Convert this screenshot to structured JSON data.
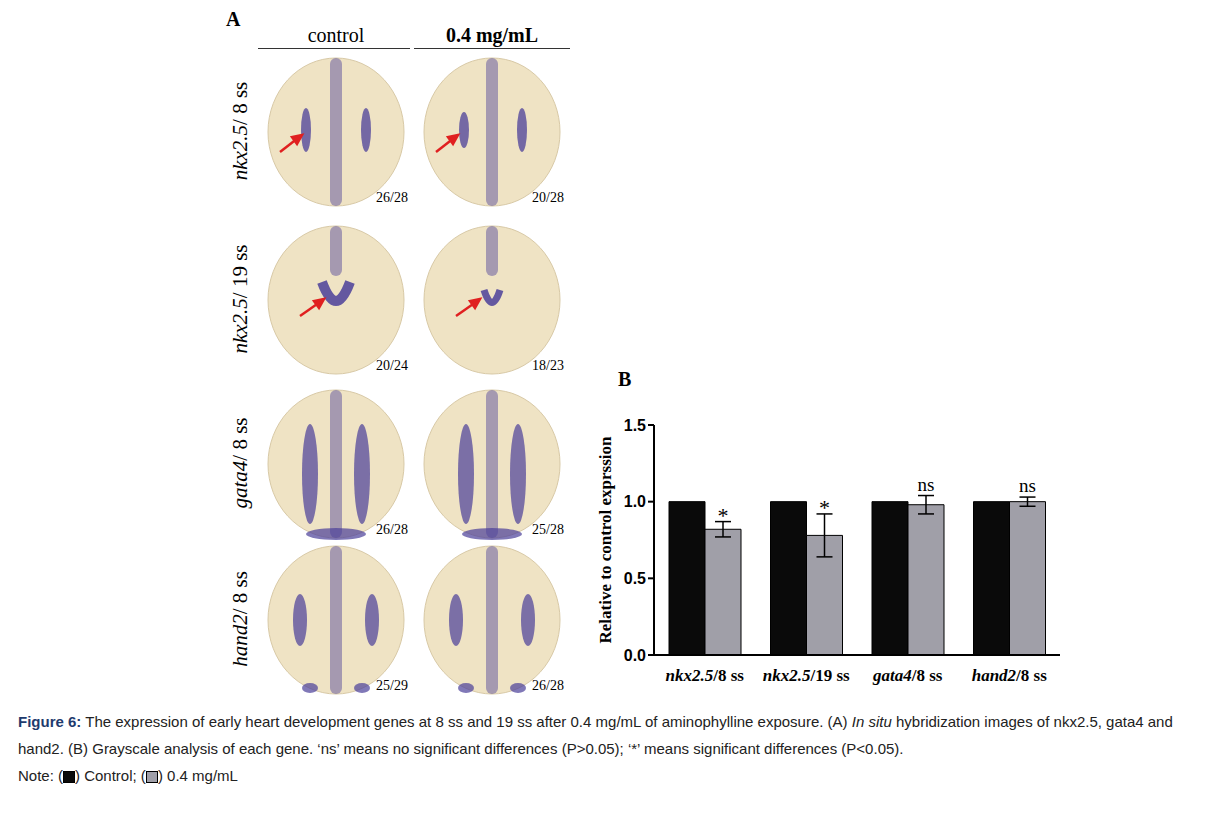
{
  "panel_a": {
    "label": "A",
    "columns": [
      "control",
      "0.4 mg/mL"
    ],
    "rows": [
      {
        "label": "nkx2.5/ 8 ss",
        "counts": [
          "26/28",
          "20/28"
        ]
      },
      {
        "label": "nkx2.5/ 19 ss",
        "counts": [
          "20/24",
          "18/23"
        ]
      },
      {
        "label": "gata4/ 8 ss",
        "counts": [
          "26/28",
          "25/28"
        ]
      },
      {
        "label": "hand2/ 8 ss",
        "counts": [
          "25/29",
          "26/28"
        ]
      }
    ]
  },
  "chart_data": {
    "type": "bar",
    "panel_label": "B",
    "y_label": "Relative to control exprssion",
    "categories": [
      "nkx2.5/8 ss",
      "nkx2.5/19 ss",
      "gata4/8 ss",
      "hand2/8 ss"
    ],
    "ylim": [
      0,
      1.5
    ],
    "yticks": [
      {
        "value": 0,
        "label": "0.0"
      },
      {
        "value": 0.5,
        "label": "0.5"
      },
      {
        "value": 1,
        "label": "1.0"
      },
      {
        "value": 1.5,
        "label": "1.5"
      }
    ],
    "series": [
      {
        "name": "Control",
        "color": "#0a0a0a",
        "values": [
          1,
          1,
          1,
          1
        ]
      },
      {
        "name": "0.4 mg/mL",
        "color": "#a09fa8",
        "values": [
          0.82,
          0.78,
          0.98,
          1.0
        ],
        "errors": [
          0.05,
          0.14,
          0.06,
          0.03
        ],
        "annotations": [
          "*",
          "*",
          "ns",
          "ns"
        ]
      }
    ]
  },
  "caption": {
    "parts": [
      {
        "text": "Figure 6:",
        "bold": true
      },
      {
        "text": " The expression of early heart development genes at 8 ss and 19 ss after 0.4 mg/mL of aminophylline exposure. (A) "
      },
      {
        "text": "In situ",
        "italic": true
      },
      {
        "text": " hybridization images of nkx2.5, gata4 and hand2. (B) Grayscale analysis of each gene. ‘ns’ means no significant differences (P>0.05); ‘*’ means significant differences (P<0.05)."
      }
    ],
    "note": [
      {
        "text": "Note: ("
      },
      {
        "swatch": "Control"
      },
      {
        "text": ") Control; ("
      },
      {
        "swatch": "0.4 mg/mL"
      },
      {
        "text": ") 0.4 mg/mL"
      }
    ]
  }
}
